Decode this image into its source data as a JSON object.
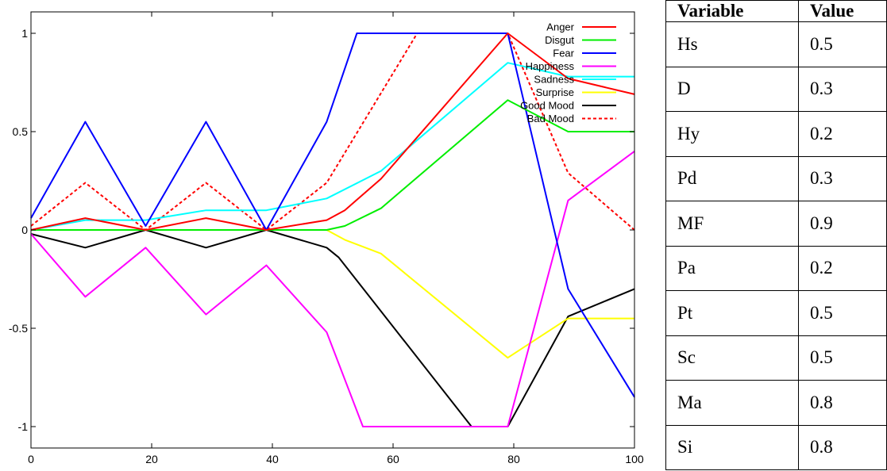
{
  "chart_data": {
    "type": "line",
    "xlim": [
      0,
      100
    ],
    "ylim": [
      -1.1,
      1.1
    ],
    "x_ticks": [
      0,
      20,
      40,
      60,
      80,
      100
    ],
    "y_ticks": [
      -1,
      -0.5,
      0,
      0.5,
      1
    ],
    "x_tick_labels": [
      "0",
      "20",
      "40",
      "60",
      "80",
      "100"
    ],
    "y_tick_labels": [
      "-1",
      "-0.5",
      "0",
      "0.5",
      "1"
    ],
    "grid": false,
    "legend_position": "top-right",
    "series": [
      {
        "name": "Anger",
        "color": "#ff0000",
        "dash": "solid",
        "x": [
          0,
          9,
          19,
          29,
          39,
          49,
          52,
          58,
          79,
          89,
          100
        ],
        "y": [
          0,
          0.06,
          0,
          0.06,
          0,
          0.05,
          0.1,
          0.26,
          1,
          0.77,
          0.69
        ]
      },
      {
        "name": "Disgut",
        "color": "#00ee00",
        "dash": "solid",
        "x": [
          0,
          9,
          19,
          29,
          39,
          49,
          52,
          58,
          79,
          89,
          100
        ],
        "y": [
          0,
          0,
          0,
          0,
          0,
          0,
          0.02,
          0.11,
          0.66,
          0.5,
          0.5
        ]
      },
      {
        "name": "Fear",
        "color": "#0000ff",
        "dash": "solid",
        "x": [
          0,
          9,
          19,
          29,
          39,
          49,
          54,
          79,
          89,
          100
        ],
        "y": [
          0.06,
          0.55,
          0.02,
          0.55,
          0,
          0.55,
          1,
          1,
          -0.3,
          -0.85
        ]
      },
      {
        "name": "Happiness",
        "color": "#ff00ff",
        "dash": "solid",
        "x": [
          0,
          9,
          19,
          29,
          39,
          49,
          55,
          79,
          89,
          100
        ],
        "y": [
          -0.02,
          -0.34,
          -0.09,
          -0.43,
          -0.18,
          -0.52,
          -1,
          -1,
          0.15,
          0.4
        ]
      },
      {
        "name": "Sadness",
        "color": "#00ffff",
        "dash": "solid",
        "x": [
          0,
          9,
          19,
          29,
          39,
          49,
          58,
          79,
          89,
          100
        ],
        "y": [
          0,
          0.05,
          0.05,
          0.1,
          0.1,
          0.16,
          0.3,
          0.85,
          0.78,
          0.78
        ]
      },
      {
        "name": "Surprise",
        "color": "#ffff00",
        "dash": "solid",
        "x": [
          0,
          9,
          19,
          29,
          39,
          49,
          52,
          58,
          79,
          89,
          100
        ],
        "y": [
          0,
          0,
          0,
          0,
          0,
          0,
          -0.05,
          -0.12,
          -0.65,
          -0.45,
          -0.45
        ]
      },
      {
        "name": "Good Mood",
        "color": "#000000",
        "dash": "solid",
        "x": [
          0,
          9,
          19,
          29,
          39,
          49,
          51,
          73,
          79,
          89,
          100
        ],
        "y": [
          -0.02,
          -0.09,
          0,
          -0.09,
          0,
          -0.09,
          -0.14,
          -1,
          -1,
          -0.44,
          -0.3
        ]
      },
      {
        "name": "Bad Mood",
        "color": "#ff0000",
        "dash": "dashed",
        "x": [
          0,
          9,
          19,
          29,
          39,
          49,
          64,
          79,
          89,
          100
        ],
        "y": [
          0.02,
          0.24,
          0,
          0.24,
          0,
          0.24,
          1,
          1,
          0.29,
          0
        ]
      }
    ]
  },
  "table": {
    "headers": [
      "Variable",
      "Value"
    ],
    "rows": [
      [
        "Hs",
        "0.5"
      ],
      [
        "D",
        "0.3"
      ],
      [
        "Hy",
        "0.2"
      ],
      [
        "Pd",
        "0.3"
      ],
      [
        "MF",
        "0.9"
      ],
      [
        "Pa",
        "0.2"
      ],
      [
        "Pt",
        "0.5"
      ],
      [
        "Sc",
        "0.5"
      ],
      [
        "Ma",
        "0.8"
      ],
      [
        "Si",
        "0.8"
      ]
    ]
  }
}
